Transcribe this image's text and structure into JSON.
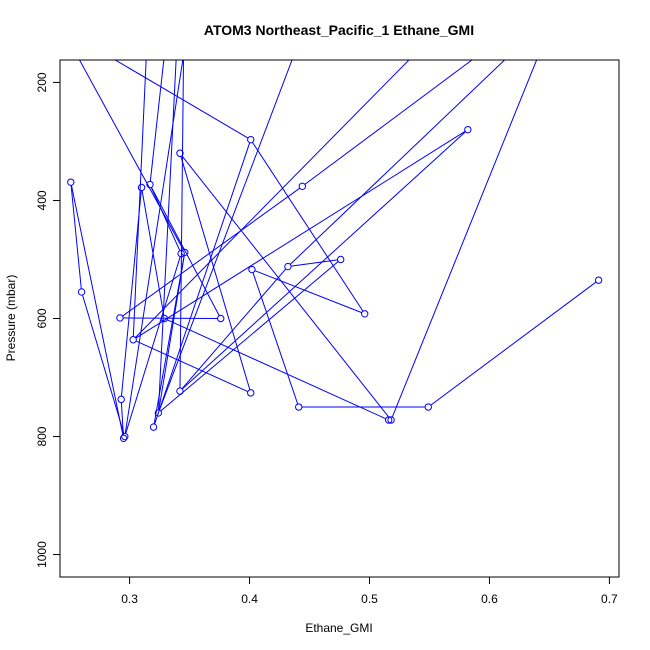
{
  "chart_data": {
    "type": "line",
    "title": "ATOM3 Northeast_Pacific_1 Ethane_GMI",
    "xlabel": "Ethane_GMI",
    "ylabel": "Pressure (mbar)",
    "xlim": [
      0.242,
      0.708
    ],
    "ylim": [
      1038,
      162
    ],
    "y_reversed": true,
    "grid": false,
    "x_ticks": [
      {
        "value": 0.3,
        "label": "0.3"
      },
      {
        "value": 0.4,
        "label": "0.4"
      },
      {
        "value": 0.5,
        "label": "0.5"
      },
      {
        "value": 0.6,
        "label": "0.6"
      },
      {
        "value": 0.7,
        "label": "0.7"
      }
    ],
    "y_ticks": [
      {
        "value": 200,
        "label": "200"
      },
      {
        "value": 400,
        "label": "400"
      },
      {
        "value": 600,
        "label": "600"
      },
      {
        "value": 800,
        "label": "800"
      },
      {
        "value": 1000,
        "label": "1000"
      }
    ],
    "color": "#0000ff",
    "series": [
      {
        "points": [
          [
            0.691,
            535
          ],
          [
            0.549,
            750
          ],
          [
            0.441,
            750
          ],
          [
            0.402,
            517
          ],
          [
            0.496,
            592
          ],
          [
            0.401,
            297
          ],
          [
            0.32,
            784
          ],
          [
            0.346,
            488
          ],
          [
            0.324,
            760
          ],
          [
            0.476,
            500
          ],
          [
            0.432,
            512
          ],
          [
            0.342,
            723
          ],
          [
            0.582,
            280
          ],
          [
            0.303,
            636
          ],
          [
            0.401,
            726
          ],
          [
            0.342,
            320
          ],
          [
            0.518,
            772
          ],
          [
            0.516,
            772
          ],
          [
            0.329,
            600
          ],
          [
            0.31,
            378
          ],
          [
            0.293,
            737
          ],
          [
            0.295,
            803
          ],
          [
            0.251,
            369
          ],
          [
            0.26,
            555
          ],
          [
            0.296,
            800
          ],
          [
            0.343,
            490
          ],
          [
            0.317,
            373
          ],
          [
            0.376,
            600
          ],
          [
            0.292,
            599
          ],
          [
            0.444,
            376
          ]
        ]
      }
    ],
    "offscreen_links": [
      {
        "from": 0.641,
        "to": 0.518
      },
      {
        "from": 0.345,
        "to": 0.296
      },
      {
        "from": 0.617,
        "to": 0.432
      },
      {
        "from": 0.537,
        "to": 0.304
      },
      {
        "from": 0.437,
        "to": 0.324
      },
      {
        "from": 0.329,
        "to": 0.317
      },
      {
        "from": 0.345,
        "to": 0.342
      },
      {
        "from": 0.281,
        "to": 0.401
      },
      {
        "from": 0.591,
        "to": 0.444
      },
      {
        "from": 0.256,
        "to": 0.345
      },
      {
        "from": 0.339,
        "to": 0.325
      },
      {
        "from": 0.314,
        "to": 0.303
      }
    ]
  }
}
